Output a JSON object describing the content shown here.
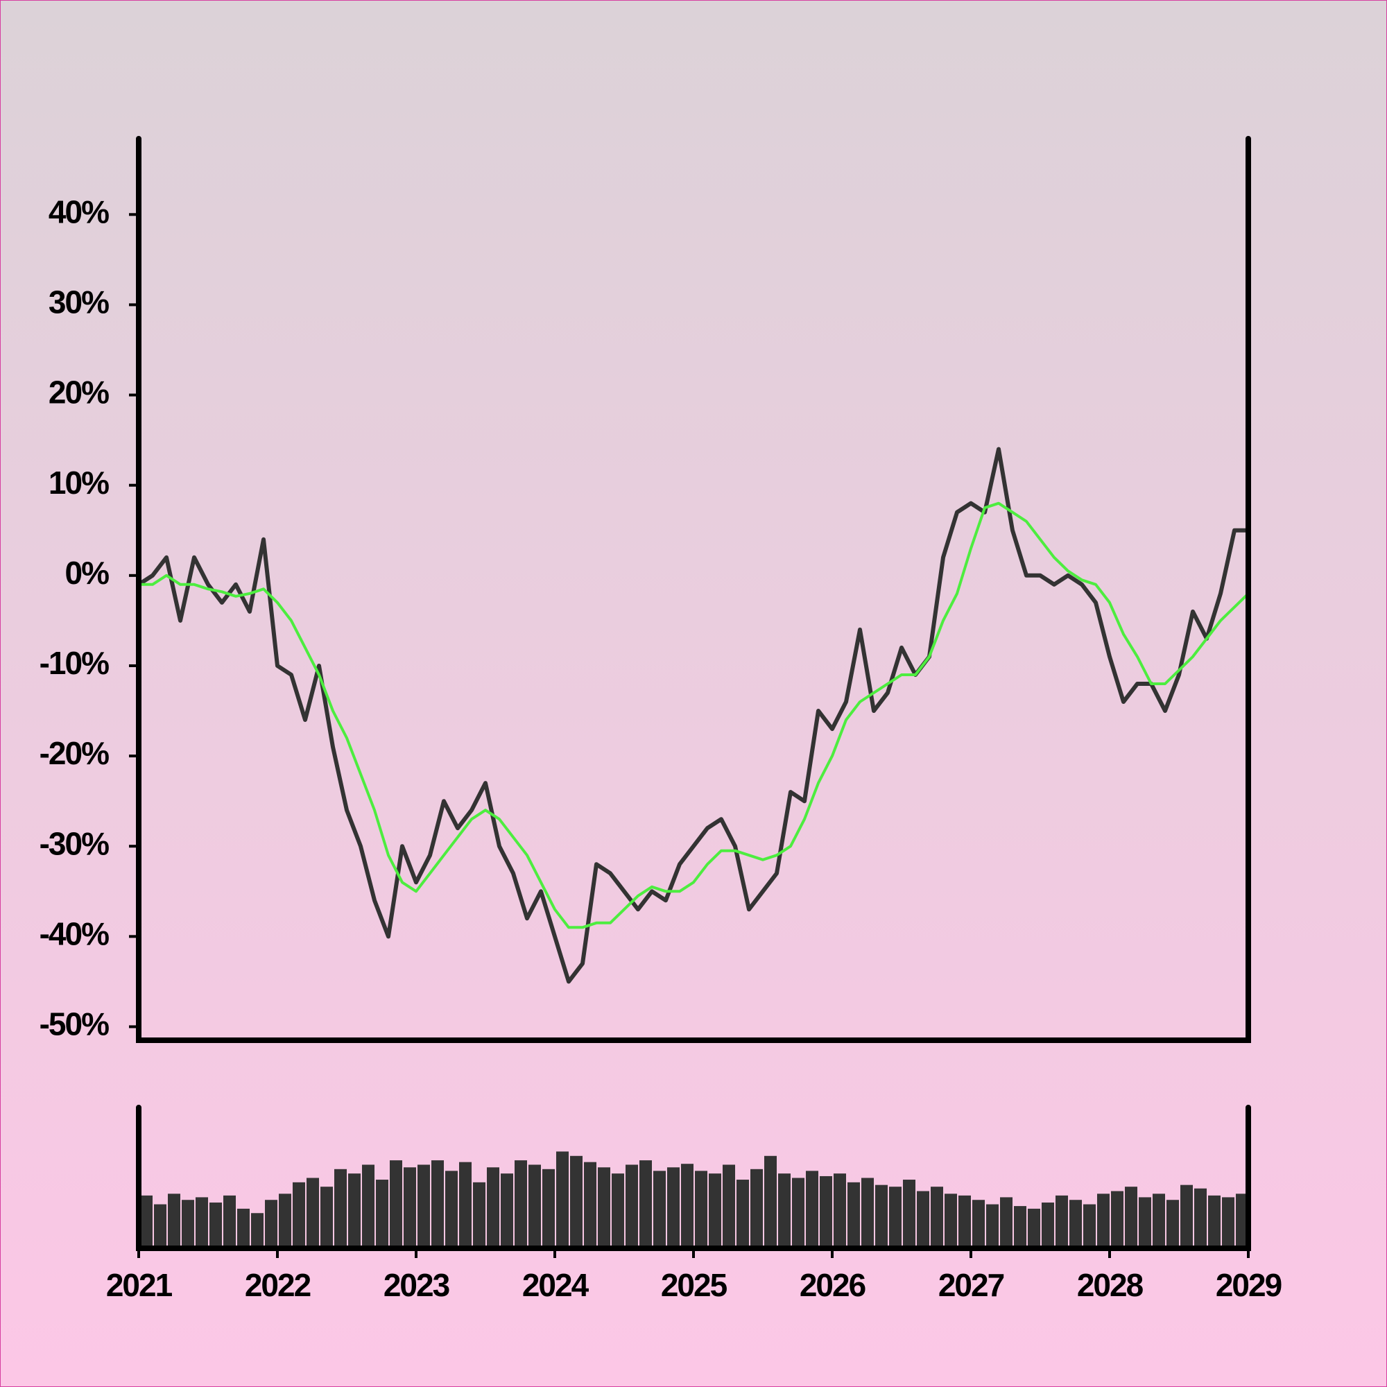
{
  "chart_data": [
    {
      "type": "line",
      "x": [
        2021.0,
        2021.1,
        2021.2,
        2021.3,
        2021.4,
        2021.5,
        2021.6,
        2021.7,
        2021.8,
        2021.9,
        2022.0,
        2022.1,
        2022.2,
        2022.3,
        2022.4,
        2022.5,
        2022.6,
        2022.7,
        2022.8,
        2022.9,
        2023.0,
        2023.1,
        2023.2,
        2023.3,
        2023.4,
        2023.5,
        2023.6,
        2023.7,
        2023.8,
        2023.9,
        2024.0,
        2024.1,
        2024.2,
        2024.3,
        2024.4,
        2024.5,
        2024.6,
        2024.7,
        2024.8,
        2024.9,
        2025.0,
        2025.1,
        2025.2,
        2025.3,
        2025.4,
        2025.5,
        2025.6,
        2025.7,
        2025.8,
        2025.9,
        2026.0,
        2026.1,
        2026.2,
        2026.3,
        2026.4,
        2026.5,
        2026.6,
        2026.7,
        2026.8,
        2026.9,
        2027.0,
        2027.1,
        2027.2,
        2027.3,
        2027.4,
        2027.5,
        2027.6,
        2027.7,
        2027.8,
        2027.9,
        2028.0,
        2028.1,
        2028.2,
        2028.3,
        2028.4,
        2028.5,
        2028.6,
        2028.7,
        2028.8,
        2028.9,
        2029.0
      ],
      "series": [
        {
          "color": "#333333",
          "values": [
            -1,
            0,
            2,
            -5,
            2,
            -1,
            -3,
            -1,
            -4,
            4,
            -10,
            -11,
            -16,
            -10,
            -19,
            -26,
            -30,
            -36,
            -40,
            -30,
            -34,
            -31,
            -25,
            -28,
            -26,
            -23,
            -30,
            -33,
            -38,
            -35,
            -40,
            -45,
            -43,
            -32,
            -33,
            -35,
            -37,
            -35,
            -36,
            -32,
            -30,
            -28,
            -27,
            -30,
            -37,
            -35,
            -33,
            -24,
            -25,
            -15,
            -17,
            -14,
            -6,
            -15,
            -13,
            -8,
            -11,
            -9,
            2,
            7,
            8,
            7,
            14,
            5,
            0,
            0,
            -1,
            0,
            -1,
            -3,
            -9,
            -14,
            -12,
            -12,
            -15,
            -11,
            -4,
            -7,
            -2,
            5,
            5
          ]
        },
        {
          "color": "#4ded3f",
          "values": [
            -1,
            -1,
            0,
            -1,
            -1,
            -1.5,
            -1.8,
            -2.3,
            -2,
            -1.5,
            -3,
            -5,
            -8,
            -11,
            -15,
            -18,
            -22,
            -26,
            -31,
            -34,
            -35,
            -33,
            -31,
            -29,
            -27,
            -26,
            -27,
            -29,
            -31,
            -34,
            -37,
            -39,
            -39,
            -38.5,
            -38.5,
            -37,
            -35.5,
            -34.5,
            -35,
            -35,
            -34,
            -32,
            -30.5,
            -30.5,
            -31,
            -31.5,
            -31,
            -30,
            -27,
            -23,
            -20,
            -16,
            -14,
            -13,
            -12,
            -11,
            -11,
            -9,
            -5,
            -2,
            3,
            7.5,
            8,
            7,
            6,
            4,
            2,
            0.5,
            -0.5,
            -1,
            -3,
            -6.5,
            -9,
            -12,
            -12,
            -10.5,
            -9,
            -7,
            -5,
            -3.5,
            -2
          ]
        }
      ],
      "ylim": [
        -51.5,
        48.4
      ],
      "yticks": [
        {
          "value": 40,
          "label": "40%"
        },
        {
          "value": 30,
          "label": "30%"
        },
        {
          "value": 20,
          "label": "20%"
        },
        {
          "value": 10,
          "label": "10%"
        },
        {
          "value": 0,
          "label": "0%"
        },
        {
          "value": -10,
          "label": "-10%"
        },
        {
          "value": -20,
          "label": "-20%"
        },
        {
          "value": -30,
          "label": "-30%"
        },
        {
          "value": -40,
          "label": "-40%"
        },
        {
          "value": -50,
          "label": "-50%"
        }
      ],
      "xlim": [
        2021,
        2029
      ]
    },
    {
      "type": "bar",
      "x": [
        2021.0,
        2021.1,
        2021.2,
        2021.3,
        2021.4,
        2021.5,
        2021.6,
        2021.7,
        2021.8,
        2021.9,
        2022.0,
        2022.1,
        2022.2,
        2022.3,
        2022.4,
        2022.5,
        2022.6,
        2022.7,
        2022.8,
        2022.9,
        2023.0,
        2023.1,
        2023.2,
        2023.3,
        2023.4,
        2023.5,
        2023.6,
        2023.7,
        2023.8,
        2023.9,
        2024.0,
        2024.1,
        2024.2,
        2024.3,
        2024.4,
        2024.5,
        2024.6,
        2024.7,
        2024.8,
        2024.9,
        2025.0,
        2025.1,
        2025.2,
        2025.3,
        2025.4,
        2025.5,
        2025.6,
        2025.7,
        2025.8,
        2025.9,
        2026.0,
        2026.1,
        2026.2,
        2026.3,
        2026.4,
        2026.5,
        2026.6,
        2026.7,
        2026.8,
        2026.9,
        2027.0,
        2027.1,
        2027.2,
        2027.3,
        2027.4,
        2027.5,
        2027.6,
        2027.7,
        2027.8,
        2027.9,
        2028.0,
        2028.1,
        2028.2,
        2028.3,
        2028.4,
        2028.5,
        2028.6,
        2028.7,
        2028.8,
        2028.9
      ],
      "values": [
        60,
        50,
        62,
        55,
        58,
        52,
        60,
        45,
        40,
        55,
        62,
        75,
        80,
        70,
        90,
        85,
        95,
        78,
        100,
        92,
        95,
        100,
        88,
        98,
        75,
        92,
        85,
        100,
        95,
        90,
        110,
        105,
        98,
        92,
        85,
        95,
        100,
        88,
        92,
        96,
        88,
        85,
        95,
        78,
        90,
        105,
        85,
        80,
        88,
        82,
        85,
        75,
        80,
        72,
        70,
        78,
        65,
        70,
        62,
        60,
        55,
        50,
        58,
        48,
        45,
        52,
        60,
        55,
        50,
        62,
        65,
        70,
        58,
        62,
        55,
        72,
        68,
        60,
        58,
        62
      ],
      "color": "#333333",
      "ylim": [
        0,
        160
      ],
      "xlim": [
        2021,
        2029
      ],
      "xticks": [
        2021,
        2022,
        2023,
        2024,
        2025,
        2026,
        2027,
        2028,
        2029
      ]
    }
  ]
}
